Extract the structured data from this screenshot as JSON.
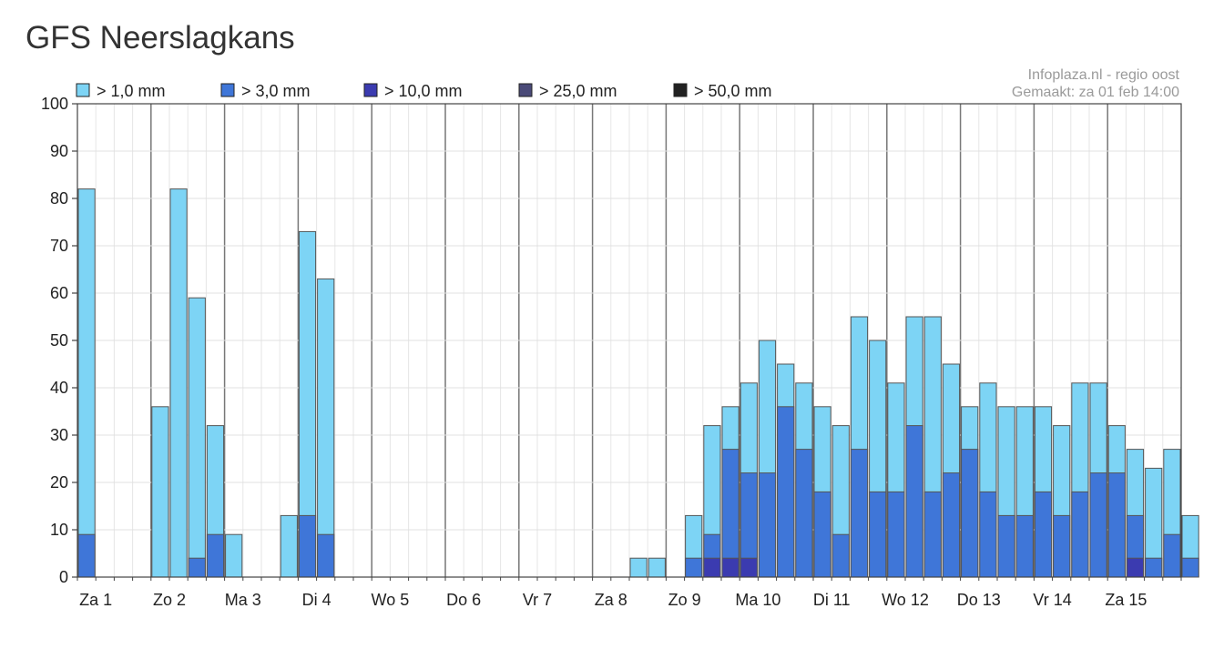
{
  "page": {
    "title": "GFS Neerslagkans"
  },
  "source": {
    "line1": "Infoplaza.nl - regio oost",
    "line2": "Gemaakt: za 01 feb 14:00"
  },
  "legend": [
    {
      "label": "> 1,0 mm",
      "color": "#7dd4f5"
    },
    {
      "label": "> 3,0 mm",
      "color": "#3f76d8"
    },
    {
      "label": "> 10,0 mm",
      "color": "#3b3bb0"
    },
    {
      "label": "> 25,0 mm",
      "color": "#4a4a78"
    },
    {
      "label": "> 50,0 mm",
      "color": "#222222"
    }
  ],
  "chart_data": {
    "type": "bar",
    "stacked_overlay": true,
    "ylim": [
      0,
      100
    ],
    "yticks": [
      0,
      10,
      20,
      30,
      40,
      50,
      60,
      70,
      80,
      90,
      100
    ],
    "grid": true,
    "legend_position": "top-left",
    "day_labels": [
      "Za 1",
      "Zo 2",
      "Ma 3",
      "Di 4",
      "Wo 5",
      "Do 6",
      "Vr 7",
      "Za 8",
      "Zo 9",
      "Ma 10",
      "Di 11",
      "Wo 12",
      "Do 13",
      "Vr 14",
      "Za 15"
    ],
    "slots_per_day": 4,
    "series": [
      {
        "name": "> 1,0 mm",
        "color": "#7dd4f5",
        "values": [
          82,
          0,
          0,
          0,
          36,
          82,
          59,
          32,
          9,
          0,
          0,
          13,
          73,
          63,
          0,
          0,
          0,
          0,
          0,
          0,
          0,
          0,
          0,
          0,
          0,
          0,
          0,
          0,
          0,
          0,
          4,
          4,
          0,
          13,
          32,
          36,
          41,
          50,
          45,
          41,
          36,
          32,
          55,
          50,
          41,
          55,
          55,
          45,
          36,
          41,
          36,
          36,
          36,
          32,
          41,
          41,
          32,
          27,
          23,
          27,
          13
        ]
      },
      {
        "name": "> 3,0 mm",
        "color": "#3f76d8",
        "values": [
          9,
          0,
          0,
          0,
          0,
          0,
          4,
          9,
          0,
          0,
          0,
          0,
          13,
          9,
          0,
          0,
          0,
          0,
          0,
          0,
          0,
          0,
          0,
          0,
          0,
          0,
          0,
          0,
          0,
          0,
          0,
          0,
          0,
          4,
          9,
          27,
          22,
          22,
          36,
          27,
          18,
          9,
          27,
          18,
          18,
          32,
          18,
          22,
          27,
          18,
          13,
          13,
          18,
          13,
          18,
          22,
          22,
          13,
          4,
          9,
          4
        ]
      },
      {
        "name": "> 10,0 mm",
        "color": "#3b3bb0",
        "values": [
          0,
          0,
          0,
          0,
          0,
          0,
          0,
          0,
          0,
          0,
          0,
          0,
          0,
          0,
          0,
          0,
          0,
          0,
          0,
          0,
          0,
          0,
          0,
          0,
          0,
          0,
          0,
          0,
          0,
          0,
          0,
          0,
          0,
          0,
          4,
          4,
          4,
          0,
          0,
          0,
          0,
          0,
          0,
          0,
          0,
          0,
          0,
          0,
          0,
          0,
          0,
          0,
          0,
          0,
          0,
          0,
          0,
          4,
          0,
          0,
          0
        ]
      },
      {
        "name": "> 25,0 mm",
        "color": "#4a4a78",
        "values": []
      },
      {
        "name": "> 50,0 mm",
        "color": "#222222",
        "values": []
      }
    ]
  }
}
